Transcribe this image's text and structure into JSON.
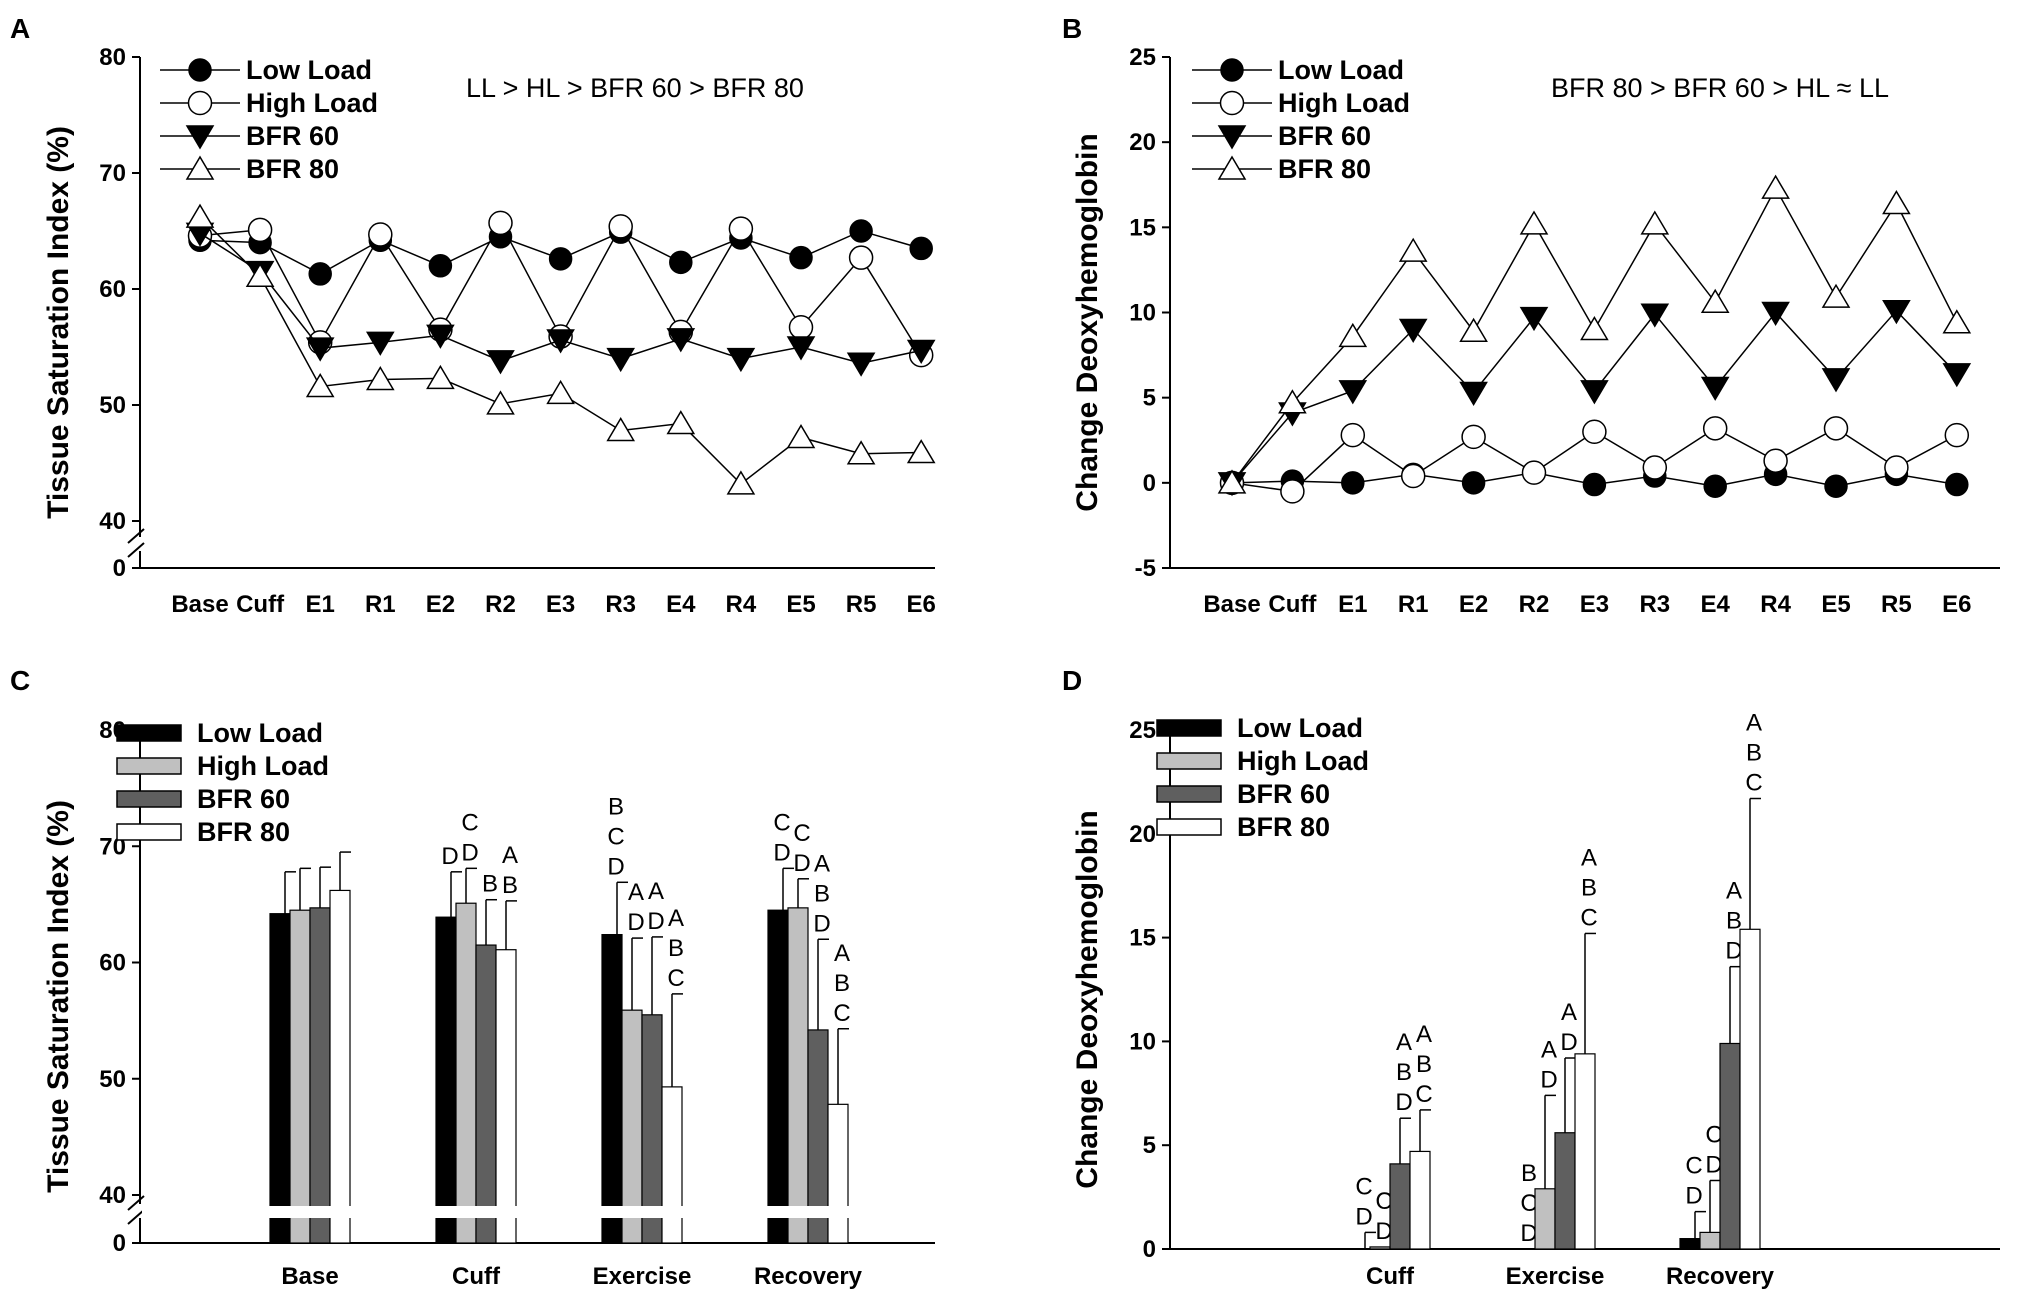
{
  "chart_data": [
    {
      "panel": "A",
      "type": "line",
      "ylabel": "Tissue Saturation Index (%)",
      "xlabel": "",
      "ylim": [
        40,
        80
      ],
      "y_break_label": "0",
      "yticks": [
        "80",
        "70",
        "60",
        "50",
        "40"
      ],
      "categories": [
        "Base",
        "Cuff",
        "E1",
        "R1",
        "E2",
        "R2",
        "E3",
        "R3",
        "E4",
        "R4",
        "E5",
        "R5",
        "E6"
      ],
      "annotation": "LL > HL > BFR 60 > BFR 80",
      "series": [
        {
          "name": "Low Load",
          "marker": "filled-circle",
          "values": [
            64.2,
            64.0,
            61.3,
            64.2,
            62.0,
            64.5,
            62.6,
            64.9,
            62.3,
            64.4,
            62.7,
            65.0,
            63.5
          ]
        },
        {
          "name": "High Load",
          "marker": "open-circle",
          "values": [
            64.6,
            65.1,
            55.4,
            64.7,
            56.5,
            65.7,
            55.9,
            65.4,
            56.3,
            65.2,
            56.7,
            62.7,
            54.3
          ]
        },
        {
          "name": "BFR 60",
          "marker": "filled-triangle-down",
          "values": [
            64.8,
            61.5,
            54.9,
            55.4,
            56.0,
            53.8,
            55.6,
            54.0,
            55.7,
            54.0,
            55.0,
            53.6,
            54.7
          ]
        },
        {
          "name": "BFR 80",
          "marker": "open-triangle-up",
          "values": [
            66.2,
            61.1,
            51.6,
            52.2,
            52.3,
            50.1,
            51.0,
            47.8,
            48.4,
            43.2,
            47.2,
            45.8,
            45.9
          ]
        }
      ]
    },
    {
      "panel": "B",
      "type": "line",
      "ylabel": "Change Deoxyhemoglobin",
      "xlabel": "",
      "ylim": [
        -5,
        25
      ],
      "yticks": [
        "25",
        "20",
        "15",
        "10",
        "5",
        "0",
        "-5"
      ],
      "categories": [
        "Base",
        "Cuff",
        "E1",
        "R1",
        "E2",
        "R2",
        "E3",
        "R3",
        "E4",
        "R4",
        "E5",
        "R5",
        "E6"
      ],
      "annotation": "BFR 80 > BFR 60 > HL ≈ LL",
      "series": [
        {
          "name": "Low Load",
          "marker": "filled-circle",
          "values": [
            0,
            0.1,
            0.0,
            0.5,
            0.0,
            0.6,
            -0.1,
            0.4,
            -0.2,
            0.5,
            -0.2,
            0.5,
            -0.1
          ]
        },
        {
          "name": "High Load",
          "marker": "open-circle",
          "values": [
            0,
            -0.5,
            2.8,
            0.4,
            2.7,
            0.6,
            3.0,
            0.9,
            3.2,
            1.3,
            3.2,
            0.9,
            2.8
          ]
        },
        {
          "name": "BFR 60",
          "marker": "filled-triangle-down",
          "values": [
            0,
            4.1,
            5.4,
            9.0,
            5.3,
            9.7,
            5.4,
            9.9,
            5.6,
            10.0,
            6.1,
            10.1,
            6.4
          ]
        },
        {
          "name": "BFR 80",
          "marker": "open-triangle-up",
          "values": [
            0,
            4.7,
            8.6,
            13.6,
            8.9,
            15.2,
            9.0,
            15.2,
            10.6,
            17.3,
            10.9,
            16.4,
            9.4
          ]
        }
      ]
    },
    {
      "panel": "C",
      "type": "bar",
      "ylabel": "Tissue Saturation Index (%)",
      "xlabel": "",
      "ylim": [
        40,
        80
      ],
      "y_break_label": "0",
      "yticks": [
        "80",
        "70",
        "60",
        "50",
        "40"
      ],
      "categories": [
        "Base",
        "Cuff",
        "Exercise",
        "Recovery"
      ],
      "series": [
        {
          "name": "Low Load",
          "color": "#000000",
          "values": [
            64.2,
            63.9,
            62.4,
            64.5
          ],
          "errors": [
            3.6,
            3.9,
            4.5,
            3.6
          ]
        },
        {
          "name": "High Load",
          "color": "#c0c0c0",
          "values": [
            64.5,
            65.1,
            55.9,
            64.7
          ],
          "errors": [
            3.6,
            3.0,
            6.2,
            2.5
          ]
        },
        {
          "name": "BFR 60",
          "color": "#5f5f5f",
          "values": [
            64.7,
            61.5,
            55.5,
            54.2
          ],
          "errors": [
            3.5,
            3.9,
            6.7,
            7.8
          ]
        },
        {
          "name": "BFR 80",
          "color": "#ffffff",
          "values": [
            66.2,
            61.1,
            49.3,
            47.8
          ],
          "errors": [
            3.3,
            4.2,
            8.0,
            6.5
          ]
        }
      ],
      "significance": [
        [
          "",
          "",
          "",
          ""
        ],
        [
          "D",
          "C\nD",
          "B",
          "A\nB"
        ],
        [
          "B\nC\nD",
          "A\nD",
          "A\nD",
          "A\nB\nC"
        ],
        [
          "C\nD",
          "C\nD",
          "A\nB\nD",
          "A\nB\nC"
        ]
      ]
    },
    {
      "panel": "D",
      "type": "bar",
      "ylabel": "Change Deoxyhemoglobin",
      "xlabel": "",
      "ylim": [
        0,
        25
      ],
      "yticks": [
        "25",
        "20",
        "15",
        "10",
        "5",
        "0"
      ],
      "categories": [
        "Cuff",
        "Exercise",
        "Recovery"
      ],
      "series": [
        {
          "name": "Low Load",
          "color": "#000000",
          "values": [
            0.0,
            0.0,
            0.5
          ],
          "errors": [
            0.8,
            0.0,
            1.3
          ]
        },
        {
          "name": "High Load",
          "color": "#c0c0c0",
          "values": [
            0.1,
            2.9,
            0.8
          ],
          "errors": [
            0.0,
            4.5,
            2.5
          ]
        },
        {
          "name": "BFR 60",
          "color": "#5f5f5f",
          "values": [
            4.1,
            5.6,
            9.9
          ],
          "errors": [
            2.2,
            3.6,
            3.7
          ]
        },
        {
          "name": "BFR 80",
          "color": "#ffffff",
          "values": [
            4.7,
            9.4,
            15.4
          ],
          "errors": [
            2.0,
            5.8,
            6.3
          ]
        }
      ],
      "significance": [
        [
          "C\nD",
          "C\nD",
          "A\nB\nD",
          "A\nB\nC"
        ],
        [
          "B\nC\nD",
          "A\nD",
          "A\nD",
          "A\nB\nC"
        ],
        [
          "C\nD",
          "C\nD",
          "A\nB\nD",
          "A\nB\nC"
        ]
      ]
    }
  ],
  "legend": [
    "Low Load",
    "High Load",
    "BFR 60",
    "BFR 80"
  ]
}
